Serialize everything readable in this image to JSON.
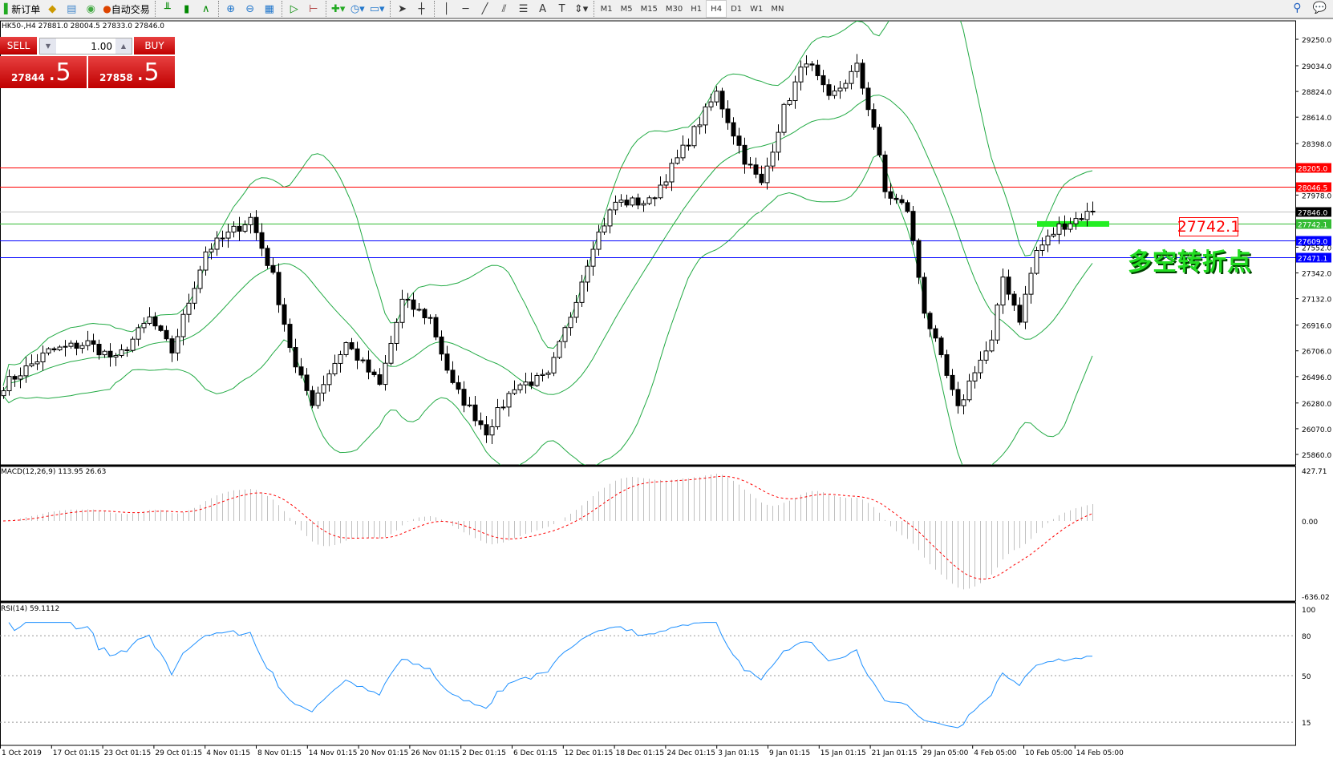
{
  "toolbar": {
    "new_order": "新订单",
    "auto_trading": "自动交易",
    "icons": [
      "new-order-icon",
      "metaeditor-icon",
      "navigator-icon",
      "signals-icon",
      "auto-trading-icon",
      "bar-chart-icon",
      "candlestick-icon",
      "line-chart-icon",
      "zoom-in-icon",
      "zoom-out-icon",
      "tile-windows-icon",
      "chart-shift-icon",
      "autoscroll-icon",
      "indicators-icon",
      "periods-icon",
      "templates-icon",
      "cursor-icon",
      "crosshair-icon",
      "vertical-line-icon",
      "horizontal-line-icon",
      "trendline-icon",
      "equidistant-channel-icon",
      "fibonacci-icon",
      "text-icon",
      "text-label-icon",
      "arrows-icon"
    ],
    "timeframes": [
      "M1",
      "M5",
      "M15",
      "M30",
      "H1",
      "H4",
      "D1",
      "W1",
      "MN"
    ],
    "active_timeframe": "H4",
    "text_tool": "A",
    "text_label_tool": "T"
  },
  "chart": {
    "info": "HK50-,H4  27881.0 28004.5 27833.0 27846.0",
    "one_click": {
      "sell": "SELL",
      "buy": "BUY",
      "lot": "1.00",
      "sell_price_main": "27844",
      "sell_price_frac": ".5",
      "buy_price_main": "27858",
      "buy_price_frac": ".5"
    },
    "price_axis": [
      "29250.0",
      "29034.0",
      "28824.0",
      "28614.0",
      "28398.0",
      "27978.0",
      "27552.0",
      "27342.0",
      "27132.0",
      "26916.0",
      "26706.0",
      "26496.0",
      "26280.0",
      "26070.0",
      "25860.0"
    ],
    "hlines": [
      {
        "value": "28205.0",
        "color": "#ff0000"
      },
      {
        "value": "28046.5",
        "color": "#ff0000"
      },
      {
        "value": "27846.0",
        "color": "#000000",
        "line": "#c0c0c0"
      },
      {
        "value": "27742.1",
        "color": "#33bb33"
      },
      {
        "value": "27609.0",
        "color": "#0000ff"
      },
      {
        "value": "27471.1",
        "color": "#0000ff"
      }
    ],
    "annotation_label": "27742.1",
    "annotation_text": "多空转折点",
    "price_path": [
      [
        0,
        26425
      ],
      [
        8,
        26700
      ],
      [
        15,
        26770
      ],
      [
        20,
        26630
      ],
      [
        26,
        26970
      ],
      [
        30,
        26700
      ],
      [
        36,
        27520
      ],
      [
        44,
        27790
      ],
      [
        48,
        27310
      ],
      [
        52,
        26560
      ],
      [
        55,
        26290
      ],
      [
        61,
        26770
      ],
      [
        67,
        26420
      ],
      [
        71,
        27110
      ],
      [
        76,
        26970
      ],
      [
        80,
        26420
      ],
      [
        86,
        26050
      ],
      [
        91,
        26420
      ],
      [
        97,
        26490
      ],
      [
        101,
        27000
      ],
      [
        105,
        27580
      ],
      [
        109,
        27920
      ],
      [
        115,
        27920
      ],
      [
        120,
        28270
      ],
      [
        127,
        28810
      ],
      [
        132,
        28270
      ],
      [
        135,
        28060
      ],
      [
        139,
        28680
      ],
      [
        143,
        29090
      ],
      [
        147,
        28750
      ],
      [
        152,
        29020
      ],
      [
        155,
        28540
      ],
      [
        157,
        28000
      ],
      [
        161,
        27860
      ],
      [
        164,
        27040
      ],
      [
        167,
        26630
      ],
      [
        170,
        26220
      ],
      [
        173,
        26560
      ],
      [
        176,
        26770
      ],
      [
        178,
        27310
      ],
      [
        181,
        26970
      ],
      [
        184,
        27520
      ],
      [
        188,
        27720
      ],
      [
        194,
        27846
      ]
    ],
    "bands": "Bollinger (20,2)"
  },
  "macd": {
    "label": "MACD(12,26,9) 113.95 26.63",
    "axis": [
      "427.71",
      "0.00",
      "-636.02"
    ]
  },
  "rsi": {
    "label": "RSI(14) 59.1112",
    "axis": [
      "100",
      "80",
      "50",
      "15"
    ],
    "levels": [
      80,
      50,
      15
    ]
  },
  "time_axis": [
    "1 Oct 2019",
    "17 Oct 01:15",
    "23 Oct 01:15",
    "29 Oct 01:15",
    "4 Nov 01:15",
    "8 Nov 01:15",
    "14 Nov 01:15",
    "20 Nov 01:15",
    "26 Nov 01:15",
    "2 Dec 01:15",
    "6 Dec 01:15",
    "12 Dec 01:15",
    "18 Dec 01:15",
    "24 Dec 01:15",
    "3 Jan 01:15",
    "9 Jan 01:15",
    "15 Jan 01:15",
    "21 Jan 01:15",
    "29 Jan 05:00",
    "4 Feb 05:00",
    "10 Feb 05:00",
    "14 Feb 05:00"
  ],
  "colors": {
    "bands": "#22aa44",
    "macd_hist": "#c0c0c0",
    "macd_signal": "#ff0000",
    "rsi": "#1e90ff",
    "one_click": "#d01010"
  }
}
